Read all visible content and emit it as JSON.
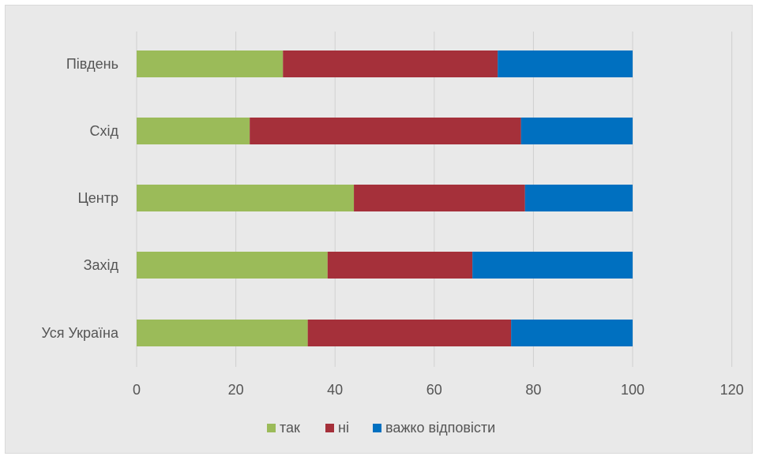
{
  "chart_data": {
    "type": "bar",
    "orientation": "horizontal",
    "stacked": true,
    "categories": [
      "Уся Україна",
      "Захід",
      "Центр",
      "Схід",
      "Південь"
    ],
    "series": [
      {
        "name": "так",
        "color": "#9bbb59",
        "values": [
          34.5,
          38.5,
          43.8,
          22.8,
          29.5
        ]
      },
      {
        "name": "ні",
        "color": "#a5303a",
        "values": [
          41.0,
          29.2,
          34.5,
          54.7,
          43.3
        ]
      },
      {
        "name": "важко відповісти",
        "color": "#0070c0",
        "values": [
          24.5,
          32.3,
          21.7,
          22.5,
          27.2
        ]
      }
    ],
    "xlim": [
      0,
      120
    ],
    "x_ticks": [
      "0",
      "20",
      "40",
      "60",
      "80",
      "100",
      "120"
    ],
    "grid": true,
    "legend_position": "bottom"
  }
}
